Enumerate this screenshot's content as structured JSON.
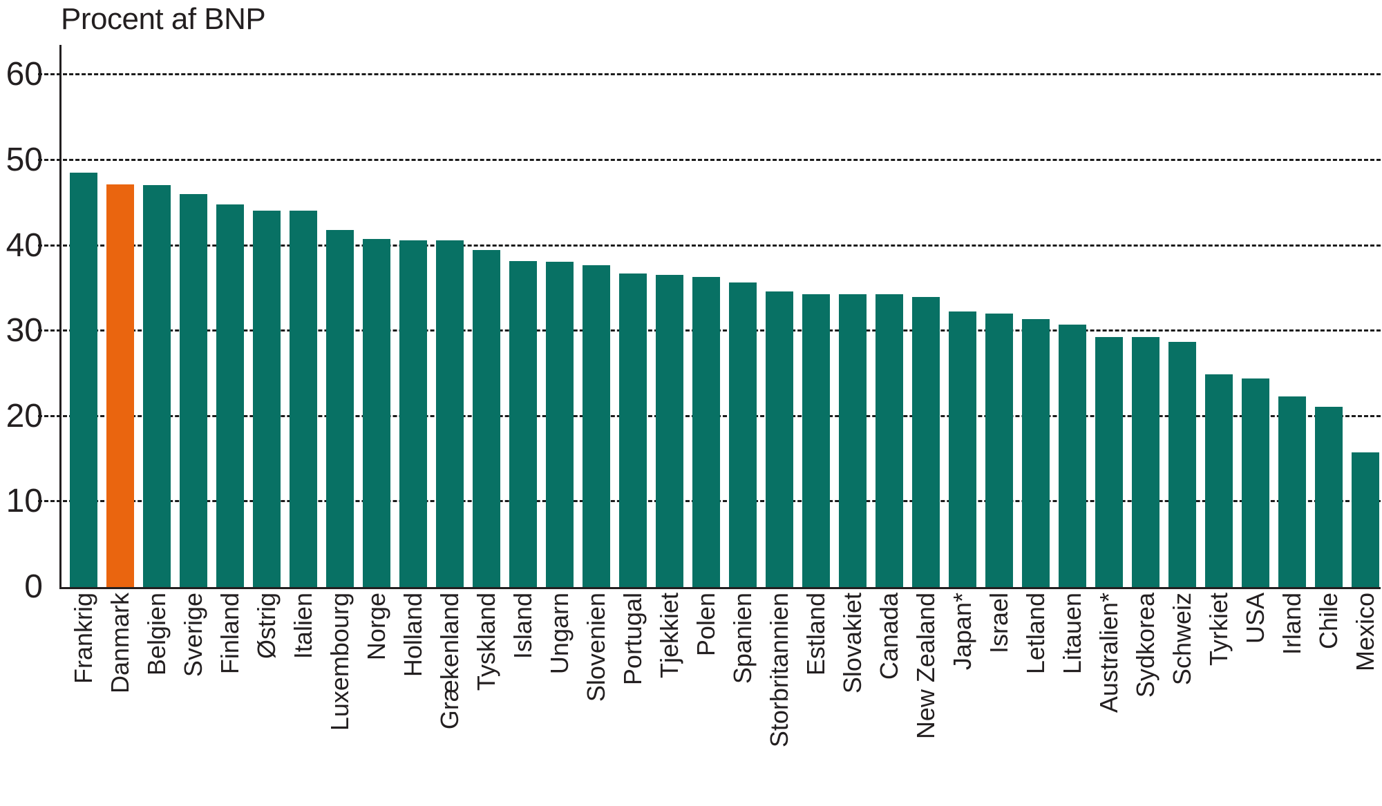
{
  "title": "Procent af BNP",
  "colors": {
    "bar": "#087164",
    "highlight": "#ea650f",
    "text": "#231f20",
    "grid": "#1c1c1c",
    "background": "#ffffff"
  },
  "chart_data": {
    "type": "bar",
    "title": "Procent af BNP",
    "xlabel": "",
    "ylabel": "Procent af BNP",
    "ylim": [
      0,
      63.5
    ],
    "yticks": [
      0,
      10,
      20,
      30,
      40,
      50,
      60
    ],
    "grid": "horizontal-dotted",
    "legend": "none",
    "highlight_category": "Danmark",
    "categories": [
      "Frankrig",
      "Danmark",
      "Belgien",
      "Sverige",
      "Finland",
      "Østrig",
      "Italien",
      "Luxembourg",
      "Norge",
      "Holland",
      "Grækenland",
      "Tyskland",
      "Island",
      "Ungarn",
      "Slovenien",
      "Portugal",
      "Tjekkiet",
      "Polen",
      "Spanien",
      "Storbritannien",
      "Estland",
      "Slovakiet",
      "Canada",
      "New Zealand",
      "Japan*",
      "Israel",
      "Letland",
      "Litauen",
      "Australien*",
      "Sydkorea",
      "Schweiz",
      "Tyrkiet",
      "USA",
      "Irland",
      "Chile",
      "Mexico"
    ],
    "values": [
      48.5,
      47.2,
      47.1,
      46.0,
      44.8,
      44.1,
      44.1,
      41.8,
      40.8,
      40.6,
      40.6,
      39.5,
      38.2,
      38.1,
      37.7,
      36.7,
      36.6,
      36.3,
      35.7,
      34.6,
      34.3,
      34.3,
      34.3,
      34.0,
      32.3,
      32.0,
      31.4,
      30.7,
      29.3,
      29.3,
      28.7,
      24.9,
      24.4,
      22.3,
      21.1,
      15.8
    ]
  }
}
